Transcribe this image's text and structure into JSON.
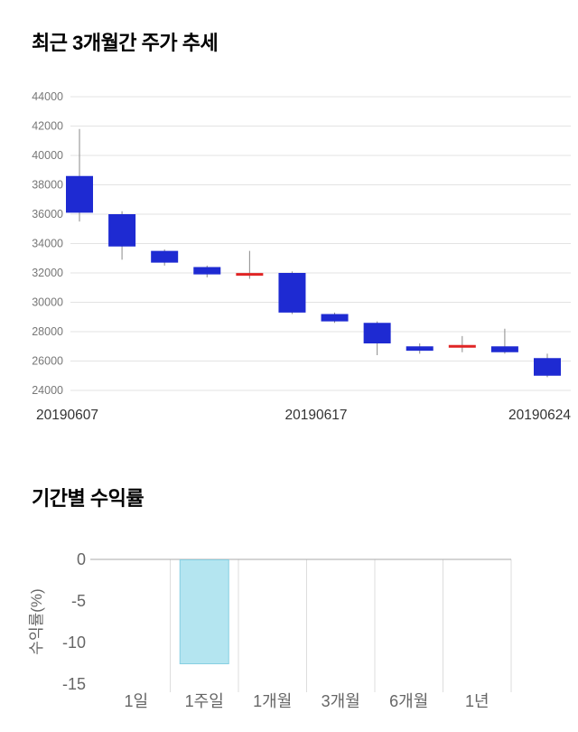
{
  "chart_data": [
    {
      "type": "candlestick",
      "title": "최근 3개월간 주가 추세",
      "ylim": [
        24000,
        44000
      ],
      "y_ticks": [
        44000,
        42000,
        40000,
        38000,
        36000,
        34000,
        32000,
        30000,
        28000,
        26000,
        24000
      ],
      "x_tick_labels": [
        "20190607",
        "20190617",
        "20190624"
      ],
      "colors": {
        "down": "#1e2ad2",
        "up": "#e02525",
        "wick": "#8a8a8a",
        "grid": "#e3e3e3",
        "axis_text": "#777777",
        "date_text": "#333333"
      },
      "candles": [
        {
          "open": 38600,
          "close": 36100,
          "high": 41800,
          "low": 35500,
          "dir": "down"
        },
        {
          "open": 36000,
          "close": 33800,
          "high": 36200,
          "low": 32900,
          "dir": "down"
        },
        {
          "open": 33500,
          "close": 32700,
          "high": 33600,
          "low": 32500,
          "dir": "down"
        },
        {
          "open": 32400,
          "close": 31900,
          "high": 32500,
          "low": 31700,
          "dir": "down"
        },
        {
          "open": 31900,
          "close": 31900,
          "high": 33500,
          "low": 31600,
          "dir": "up"
        },
        {
          "open": 32000,
          "close": 29300,
          "high": 32100,
          "low": 29200,
          "dir": "down"
        },
        {
          "open": 29200,
          "close": 28700,
          "high": 29300,
          "low": 28600,
          "dir": "down"
        },
        {
          "open": 28600,
          "close": 27200,
          "high": 28700,
          "low": 26400,
          "dir": "down"
        },
        {
          "open": 27000,
          "close": 26700,
          "high": 27200,
          "low": 26500,
          "dir": "down"
        },
        {
          "open": 27000,
          "close": 27000,
          "high": 27700,
          "low": 26600,
          "dir": "up"
        },
        {
          "open": 27000,
          "close": 26600,
          "high": 28200,
          "low": 26500,
          "dir": "down"
        },
        {
          "open": 26200,
          "close": 25000,
          "high": 26500,
          "low": 24900,
          "dir": "down"
        }
      ]
    },
    {
      "type": "bar",
      "title": "기간별 수익률",
      "ylabel": "수익률(%)",
      "ylim": [
        -15,
        0
      ],
      "y_ticks": [
        0,
        -5,
        -10,
        -15
      ],
      "categories": [
        "1일",
        "1주일",
        "1개월",
        "3개월",
        "6개월",
        "1년"
      ],
      "values": [
        null,
        -12.5,
        null,
        null,
        null,
        null
      ],
      "bar_color": "#b4e5f0",
      "bar_border": "#86cfe2",
      "colors": {
        "grid": "#dddddd",
        "axis_line": "#aaaaaa",
        "axis_text": "#666666"
      }
    }
  ]
}
